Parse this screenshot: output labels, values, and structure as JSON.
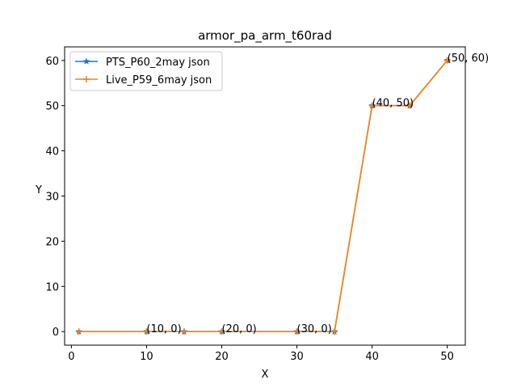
{
  "chart_data": {
    "type": "line",
    "title": "armor_pa_arm_t60rad",
    "xlabel": "X",
    "ylabel": "Y",
    "xlim": [
      -0.9,
      52.4
    ],
    "ylim": [
      -3,
      63
    ],
    "xticks": [
      0,
      10,
      20,
      30,
      40,
      50
    ],
    "yticks": [
      0,
      10,
      20,
      30,
      40,
      50,
      60
    ],
    "grid": false,
    "legend_position": "top-left",
    "series": [
      {
        "name": "PTS_P60_2may json",
        "color": "#1f77b4",
        "marker": "star",
        "x": [
          1,
          10,
          15,
          20,
          30,
          35,
          40,
          45,
          50
        ],
        "y": [
          0,
          0,
          0,
          0,
          0,
          0,
          50,
          50,
          60
        ]
      },
      {
        "name": "Live_P59_6may json",
        "color": "#ff7f0e",
        "marker": "plus",
        "x": [
          1,
          10,
          15,
          20,
          30,
          35,
          40,
          45,
          50
        ],
        "y": [
          0,
          0,
          0,
          0,
          0,
          0,
          50,
          50,
          60
        ]
      }
    ],
    "annotations": [
      {
        "text": "(10, 0)",
        "x": 10,
        "y": 0
      },
      {
        "text": "(20, 0)",
        "x": 20,
        "y": 0
      },
      {
        "text": "(30, 0)",
        "x": 30,
        "y": 0
      },
      {
        "text": "(40, 50)",
        "x": 40,
        "y": 50
      },
      {
        "text": "(50, 60)",
        "x": 50,
        "y": 60
      }
    ]
  }
}
